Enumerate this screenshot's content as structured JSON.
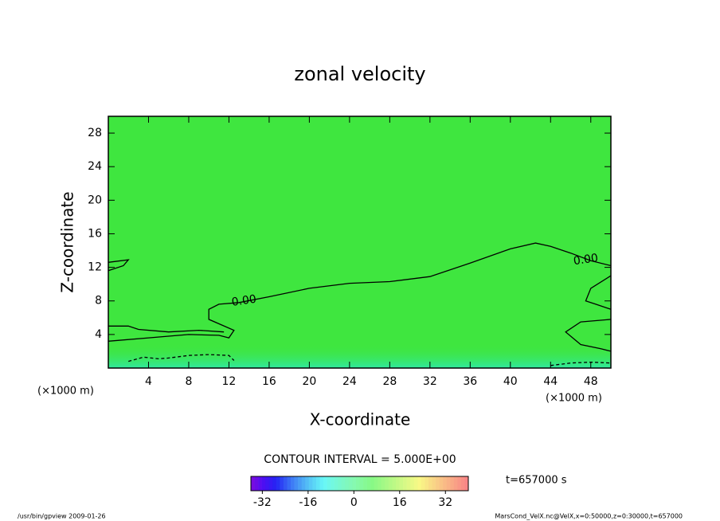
{
  "chart_data": {
    "type": "contour",
    "title": "zonal velocity",
    "x_label": "X-coordinate",
    "y_label": "Z-coordinate",
    "x_unit": "(×1000 m)",
    "y_unit": "(×1000 m)",
    "xlim": [
      0,
      50
    ],
    "ylim": [
      0,
      30
    ],
    "xticks": [
      4,
      8,
      12,
      16,
      20,
      24,
      28,
      32,
      36,
      40,
      44,
      48
    ],
    "yticks": [
      4,
      8,
      12,
      16,
      20,
      24,
      28
    ],
    "fill_color": "#3fe63f",
    "contours": [
      {
        "style": "solid",
        "x": [
          0,
          4,
          8,
          11,
          12,
          12.5,
          10,
          10,
          11,
          13,
          16,
          20,
          24,
          28,
          32,
          36,
          40,
          42.5,
          44,
          46,
          48,
          50,
          null,
          0,
          2,
          1.5,
          0,
          null,
          0,
          2,
          3,
          6,
          9,
          11.5,
          null,
          50,
          48,
          47.5,
          48.5,
          50,
          null,
          50,
          47,
          45.5,
          47,
          49,
          50
        ],
        "y": [
          3.2,
          3.6,
          4,
          3.9,
          3.6,
          4.5,
          5.8,
          7,
          7.6,
          7.8,
          8.5,
          9.5,
          10.1,
          10.3,
          10.9,
          12.5,
          14.2,
          14.9,
          14.5,
          13.7,
          12.8,
          12.2,
          null,
          12.6,
          12.9,
          12.2,
          11.6,
          null,
          5,
          5,
          4.6,
          4.3,
          4.5,
          4.3,
          null,
          11,
          9.5,
          8,
          7.6,
          7,
          null,
          5.8,
          5.5,
          4.3,
          2.8,
          2.3,
          2
        ]
      },
      {
        "style": "dashed",
        "x": [
          2,
          3.5,
          5,
          6,
          8,
          10,
          12,
          12.5,
          null,
          44,
          46,
          48,
          50
        ],
        "y": [
          0.8,
          1.3,
          1.1,
          1.2,
          1.5,
          1.6,
          1.5,
          0.9,
          null,
          0.3,
          0.6,
          0.7,
          0.6
        ]
      }
    ],
    "annotations": [
      {
        "text": "0.00",
        "x": 13.5,
        "y": 8.0
      },
      {
        "text": "0.00",
        "x": 47.5,
        "y": 12.9
      }
    ],
    "contour_interval": "CONTOUR INTERVAL = 5.000E+00",
    "time_label": "t=657000 s",
    "colorbar": {
      "lim": [
        -36,
        40
      ],
      "ticks": [
        -32,
        -16,
        0,
        16,
        32
      ]
    },
    "footer_left": "/usr/bin/gpview   2009-01-26",
    "footer_right": "MarsCond_VelX.nc@VelX,x=0:50000,z=0:30000,t=657000"
  }
}
